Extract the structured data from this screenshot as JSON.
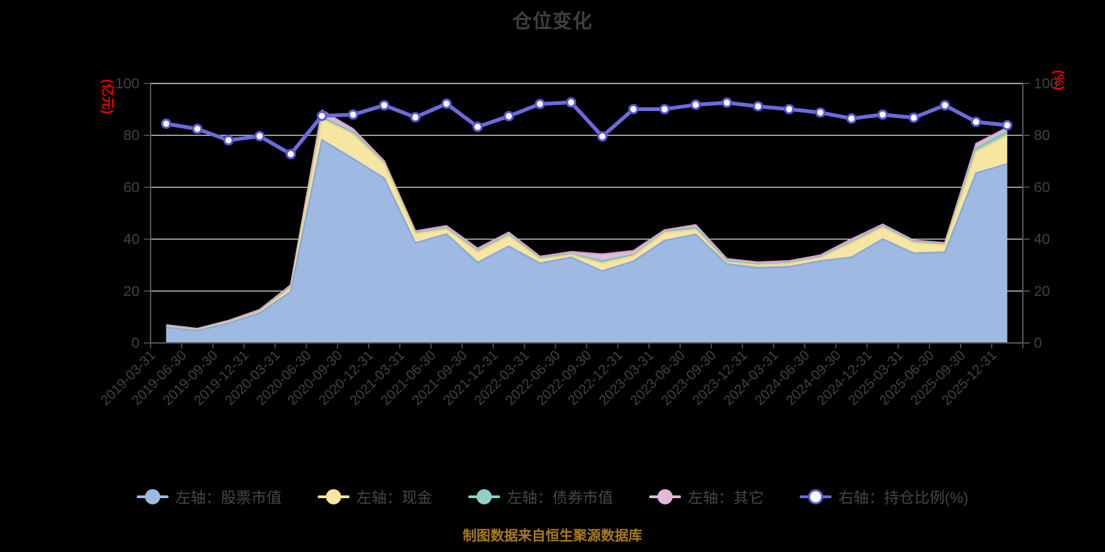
{
  "title": "仓位变化",
  "footer_note": "制图数据来自恒生聚源数据库",
  "left_axis": {
    "unit": "(亿元)",
    "ticks": [
      0,
      20,
      40,
      60,
      80,
      100
    ],
    "min": 0,
    "max": 100
  },
  "right_axis": {
    "unit": "(%)",
    "ticks": [
      0,
      20,
      40,
      60,
      80,
      100
    ],
    "min": 0,
    "max": 100
  },
  "colors": {
    "stock_fill": "#9eb9e2",
    "stock_stroke": "#89a9da",
    "cash_fill": "#f6e6a2",
    "cash_stroke": "#edd789",
    "bond_fill": "#8fcfc5",
    "bond_stroke": "#79c4b7",
    "other_fill": "#e2b8db",
    "other_stroke": "#d5a3cf",
    "ratio_line": "#6b6be0",
    "ratio_dot_ring": "#5858d8",
    "ratio_dot_fill": "#ffffff",
    "grid": "#d6d6d6",
    "axis": "#565656",
    "tick_text": "#424242",
    "title_text": "#3f3f3f",
    "unit_text": "#e60000",
    "footer_text": "#aa7b1e"
  },
  "legend": {
    "items": [
      {
        "label": "左轴：股票市值",
        "line": "#9eb9e2",
        "fill": "#9eb9e2",
        "ring": "#9eb9e2"
      },
      {
        "label": "左轴：现金",
        "line": "#f6e6a2",
        "fill": "#f6e6a2",
        "ring": "#f6e6a2"
      },
      {
        "label": "左轴：债券市值",
        "line": "#8fcfc5",
        "fill": "#8fcfc5",
        "ring": "#8fcfc5"
      },
      {
        "label": "左轴：其它",
        "line": "#e2b8db",
        "fill": "#e2b8db",
        "ring": "#e2b8db"
      },
      {
        "label": "右轴：持仓比例(%)",
        "line": "#6b6be0",
        "fill": "#ffffff",
        "ring": "#5858d8"
      }
    ]
  },
  "chart_data": {
    "type": "area",
    "subtype": "stacked-area-with-line",
    "grid": "horizontal",
    "legend_position": "bottom",
    "categories": [
      "2019-03-31",
      "2019-06-30",
      "2019-09-30",
      "2019-12-31",
      "2020-03-31",
      "2020-06-30",
      "2020-09-30",
      "2020-12-31",
      "2021-03-31",
      "2021-06-30",
      "2021-09-30",
      "2021-12-31",
      "2022-03-31",
      "2022-06-30",
      "2022-09-30",
      "2022-12-31",
      "2023-03-31",
      "2023-06-30",
      "2023-09-30",
      "2023-12-31",
      "2024-03-31",
      "2024-06-30",
      "2024-09-30",
      "2024-12-31",
      "2025-03-31",
      "2025-06-30",
      "2025-09-30",
      "2025-12-31"
    ],
    "ylim_left": [
      0,
      100
    ],
    "ylim_right": [
      0,
      100
    ],
    "series": [
      {
        "name": "左轴：股票市值",
        "axis": "left",
        "type": "area",
        "stack": true,
        "color": "#9eb9e2",
        "stroke": "#89a9da",
        "values": [
          6.0,
          4.7,
          7.6,
          11.5,
          19.8,
          78.3,
          71.0,
          63.5,
          38.5,
          42.0,
          31.0,
          37.3,
          30.7,
          33.0,
          27.7,
          31.5,
          39.5,
          41.8,
          30.4,
          29.0,
          29.4,
          31.6,
          33.0,
          40.0,
          34.6,
          35.0,
          65.5,
          69.0
        ]
      },
      {
        "name": "左轴：现金",
        "axis": "left",
        "type": "area",
        "stack": true,
        "color": "#f6e6a2",
        "stroke": "#edd789",
        "values": [
          0.3,
          0.3,
          0.4,
          0.5,
          1.4,
          8.0,
          9.5,
          5.5,
          3.6,
          1.8,
          4.0,
          4.0,
          1.6,
          1.0,
          3.0,
          2.0,
          3.0,
          1.9,
          0.7,
          1.0,
          1.2,
          1.2,
          5.5,
          4.5,
          4.0,
          2.7,
          8.2,
          11.0
        ]
      },
      {
        "name": "左轴：债券市值",
        "axis": "left",
        "type": "area",
        "stack": true,
        "color": "#8fcfc5",
        "stroke": "#79c4b7",
        "values": [
          0.1,
          0.1,
          0.1,
          0.1,
          0.2,
          0.8,
          0.8,
          0.3,
          0.3,
          0.4,
          0.4,
          0.4,
          0.3,
          0.3,
          0.9,
          0.5,
          0.3,
          0.7,
          0.4,
          0.3,
          0.3,
          0.3,
          0.5,
          0.5,
          0.3,
          0.3,
          1.3,
          1.5
        ]
      },
      {
        "name": "左轴：其它",
        "axis": "left",
        "type": "area",
        "stack": true,
        "color": "#e2b8db",
        "stroke": "#d5a3cf",
        "values": [
          0.5,
          0.4,
          0.5,
          0.7,
          0.9,
          2.5,
          1.2,
          0.8,
          0.7,
          0.9,
          1.0,
          0.9,
          0.7,
          0.8,
          2.6,
          1.5,
          0.7,
          1.1,
          0.9,
          0.8,
          0.7,
          0.7,
          1.0,
          0.7,
          0.6,
          0.6,
          1.8,
          1.5
        ]
      },
      {
        "name": "右轴：持仓比例(%)",
        "axis": "right",
        "type": "line",
        "color": "#6b6be0",
        "dot_ring": "#5858d8",
        "dot_fill": "#ffffff",
        "values": [
          84.5,
          82.5,
          78.1,
          79.7,
          72.8,
          87.5,
          88.0,
          91.6,
          87.0,
          92.2,
          83.3,
          87.4,
          92.1,
          92.7,
          79.6,
          90.1,
          90.1,
          91.8,
          92.6,
          91.2,
          90.1,
          88.8,
          86.5,
          88.0,
          86.8,
          91.6,
          85.2,
          83.9
        ]
      }
    ]
  }
}
